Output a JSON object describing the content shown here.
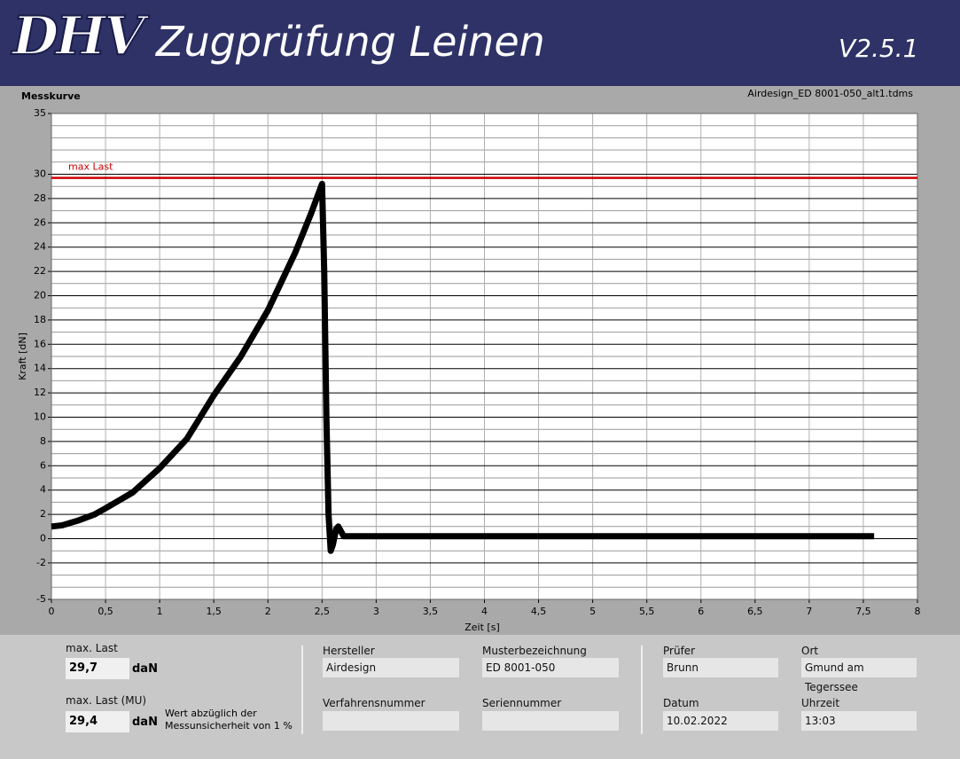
{
  "header": {
    "logo": "DHV",
    "title": "Zugprüfung Leinen",
    "version": "V2.5.1"
  },
  "chart_data": {
    "type": "line",
    "title": "Messkurve",
    "subtitle": "Airdesign_ED 8001-050_alt1.tdms",
    "xlabel": "Zeit [s]",
    "ylabel": "Kraft [dN]",
    "x": [
      0,
      0.1,
      0.25,
      0.4,
      0.5,
      0.75,
      1,
      1.25,
      1.5,
      1.75,
      2,
      2.25,
      2.4,
      2.5,
      2.52,
      2.54,
      2.56,
      2.58,
      2.6,
      2.63,
      2.65,
      2.7,
      3,
      4,
      5,
      6,
      7,
      7.6
    ],
    "series": [
      {
        "name": "Messkurve",
        "color": "#000000",
        "values": [
          1,
          1.1,
          1.5,
          2,
          2.5,
          3.8,
          5.8,
          8.2,
          11.8,
          15,
          18.8,
          23.5,
          26.8,
          29.2,
          22,
          10,
          2,
          -1,
          -0.5,
          0.8,
          1,
          0.2,
          0.2,
          0.2,
          0.2,
          0.2,
          0.2,
          0.2
        ]
      }
    ],
    "reference_line": {
      "label": "max Last",
      "value": 29.7,
      "color": "#cc0000"
    },
    "xlim": [
      0,
      8
    ],
    "xticks": [
      0,
      {
        "value": 0.5,
        "label": "0,5"
      },
      1,
      {
        "value": 1.5,
        "label": "1,5"
      },
      2,
      {
        "value": 2.5,
        "label": "2,5"
      },
      3,
      {
        "value": 3.5,
        "label": "3,5"
      },
      4,
      {
        "value": 4.5,
        "label": "4,5"
      },
      5,
      {
        "value": 5.5,
        "label": "5,5"
      },
      6,
      {
        "value": 6.5,
        "label": "6,5"
      },
      7,
      {
        "value": 7.5,
        "label": "7,5"
      },
      8
    ],
    "ylim": [
      -5,
      35
    ],
    "yticks": [
      -5,
      -2,
      0,
      2,
      4,
      6,
      8,
      10,
      12,
      14,
      16,
      18,
      20,
      22,
      24,
      26,
      28,
      30,
      35
    ],
    "minor_yticks": [
      -4,
      -3,
      -1,
      1,
      3,
      5,
      7,
      9,
      11,
      13,
      15,
      17,
      19,
      21,
      23,
      25,
      27,
      29,
      31,
      32,
      33,
      34
    ],
    "grid": true
  },
  "panel": {
    "max_last": {
      "label": "max. Last",
      "value": "29,7",
      "unit": "daN"
    },
    "max_last_mu": {
      "label": "max. Last (MU)",
      "value": "29,4",
      "unit": "daN",
      "note": "Wert abzüglich der Messunsicherheit von 1 %"
    },
    "hersteller": {
      "label": "Hersteller",
      "value": "Airdesign"
    },
    "musterbezeichnung": {
      "label": "Musterbezeichnung",
      "value": "ED 8001-050"
    },
    "verfahrensnummer": {
      "label": "Verfahrensnummer"
    },
    "seriennummer": {
      "label": "Seriennummer"
    },
    "pruefer": {
      "label": "Prüfer",
      "value": "Brunn"
    },
    "ort": {
      "label": "Ort",
      "value": "Gmund am Tegerssee"
    },
    "datum": {
      "label": "Datum",
      "value": "10.02.2022"
    },
    "uhrzeit": {
      "label": "Uhrzeit",
      "value": "13:03"
    }
  }
}
